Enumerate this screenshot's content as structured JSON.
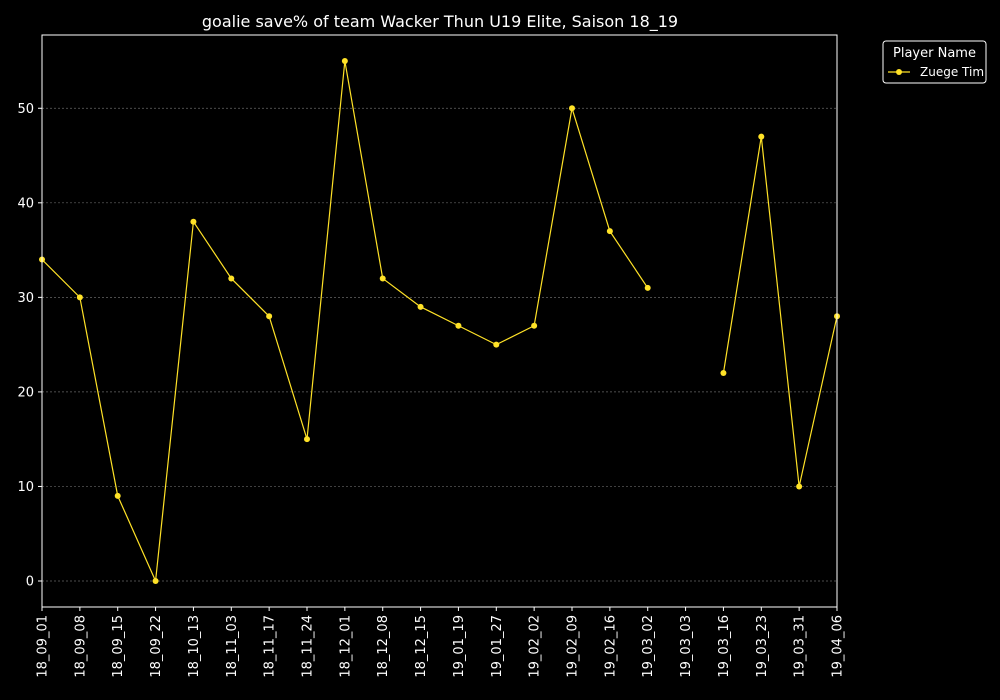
{
  "chart_data": {
    "type": "line",
    "title": "goalie save% of team Wacker Thun U19 Elite, Saison 18_19",
    "xlabel": "",
    "ylabel": "",
    "categories": [
      "18_09_01",
      "18_09_08",
      "18_09_15",
      "18_09_22",
      "18_10_13",
      "18_11_03",
      "18_11_17",
      "18_11_24",
      "18_12_01",
      "18_12_08",
      "18_12_15",
      "19_01_19",
      "19_01_27",
      "19_02_02",
      "19_02_09",
      "19_02_16",
      "19_03_02",
      "19_03_03",
      "19_03_16",
      "19_03_23",
      "19_03_31",
      "19_04_06"
    ],
    "series": [
      {
        "name": "Zuege Tim",
        "values": [
          34,
          30,
          9,
          0,
          38,
          32,
          28,
          15,
          55,
          32,
          29,
          27,
          25,
          27,
          50,
          37,
          31,
          null,
          22,
          47,
          10,
          28
        ]
      }
    ],
    "ylim": [
      -2.75,
      57.75
    ],
    "yticks": [
      0,
      10,
      20,
      30,
      40,
      50
    ],
    "grid": true,
    "legend": {
      "title": "Player Name",
      "placement": "outside-top-right"
    },
    "colors": {
      "background": "#000000",
      "axes": "#ffffff",
      "line": "#ffe227",
      "grid": "#666666"
    }
  }
}
